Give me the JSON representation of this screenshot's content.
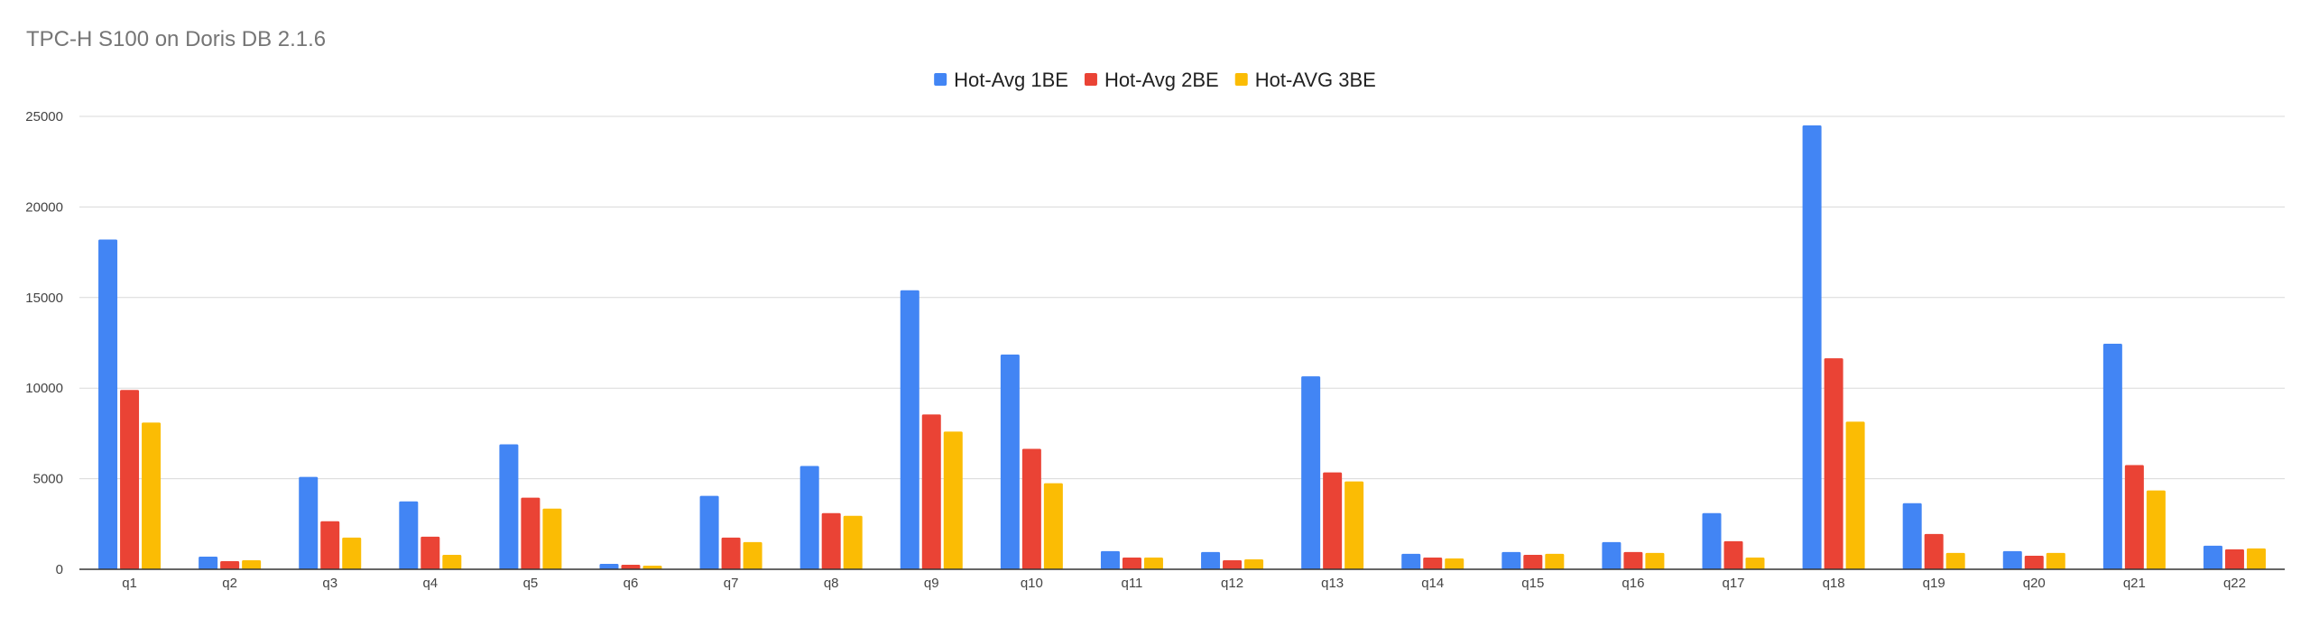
{
  "chart_data": {
    "type": "bar",
    "title": "TPC-H S100 on Doris DB 2.1.6",
    "xlabel": "",
    "ylabel": "",
    "ylim": [
      0,
      25000
    ],
    "yticks": [
      0,
      5000,
      10000,
      15000,
      20000,
      25000
    ],
    "grid": true,
    "legend_position": "top-center",
    "categories": [
      "q1",
      "q2",
      "q3",
      "q4",
      "q5",
      "q6",
      "q7",
      "q8",
      "q9",
      "q10",
      "q11",
      "q12",
      "q13",
      "q14",
      "q15",
      "q16",
      "q17",
      "q18",
      "q19",
      "q20",
      "q21",
      "q22"
    ],
    "series": [
      {
        "name": "Hot-Avg 1BE",
        "color": "#4285F4",
        "values": [
          18200,
          700,
          5100,
          3750,
          6900,
          300,
          4050,
          5700,
          15400,
          11850,
          1000,
          950,
          10650,
          850,
          950,
          1500,
          3100,
          24500,
          3650,
          1000,
          12450,
          1300
        ]
      },
      {
        "name": "Hot-Avg 2BE",
        "color": "#EA4335",
        "values": [
          9900,
          450,
          2650,
          1800,
          3950,
          250,
          1750,
          3100,
          8550,
          6650,
          650,
          500,
          5350,
          650,
          800,
          950,
          1550,
          11650,
          1950,
          750,
          5750,
          1100
        ]
      },
      {
        "name": "Hot-AVG 3BE",
        "color": "#FBBC04",
        "values": [
          8100,
          500,
          1750,
          800,
          3350,
          200,
          1500,
          2950,
          7600,
          4750,
          650,
          550,
          4850,
          600,
          850,
          900,
          650,
          8150,
          900,
          900,
          4350,
          1150
        ]
      }
    ]
  }
}
